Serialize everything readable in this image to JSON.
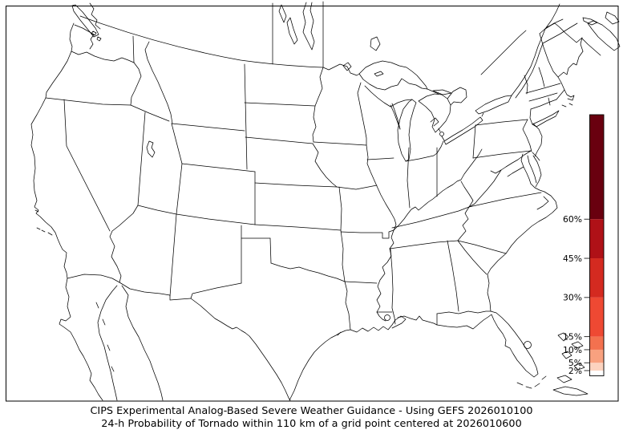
{
  "figure": {
    "caption_line1": "CIPS Experimental Analog-Based Severe Weather Guidance - Using GEFS 2026010100",
    "caption_line2": "24-h Probability of Tornado within 110 km of a grid point centered at 2026010600"
  },
  "map": {
    "region": "Continental United States with portions of Canada and Mexico",
    "projection_style": "Lambert conformal basemap, state and national borders, thin black lines",
    "shaded_probability_areas": "none",
    "line_color": "#000000",
    "background_color": "#ffffff"
  },
  "colorbar": {
    "unit": "%",
    "scale_min": 0,
    "scale_max": 100,
    "ticks": [
      {
        "label": "60%",
        "value": 60
      },
      {
        "label": "45%",
        "value": 45
      },
      {
        "label": "30%",
        "value": 30
      },
      {
        "label": "15%",
        "value": 15
      },
      {
        "label": "10%",
        "value": 10
      },
      {
        "label": "5%",
        "value": 5
      },
      {
        "label": "2%",
        "value": 2
      }
    ],
    "segments": [
      {
        "from": 0,
        "to": 2,
        "color": "#ffffff"
      },
      {
        "from": 2,
        "to": 5,
        "color": "#fcd3bf"
      },
      {
        "from": 5,
        "to": 10,
        "color": "#f8a17f"
      },
      {
        "from": 10,
        "to": 15,
        "color": "#f3714f"
      },
      {
        "from": 15,
        "to": 30,
        "color": "#ee4933"
      },
      {
        "from": 30,
        "to": 45,
        "color": "#d42a20"
      },
      {
        "from": 45,
        "to": 60,
        "color": "#af1117"
      },
      {
        "from": 60,
        "to": 100,
        "color": "#69000f"
      }
    ]
  },
  "chart_data": {
    "type": "heatmap",
    "title": "24-h Probability of Tornado within 110 km of a grid point",
    "legend_entries": [
      "2%",
      "5%",
      "10%",
      "15%",
      "30%",
      "45%",
      "60%"
    ],
    "legend_position": "right",
    "values_shown_on_map": "no probability contours visible (all below 2%)"
  }
}
